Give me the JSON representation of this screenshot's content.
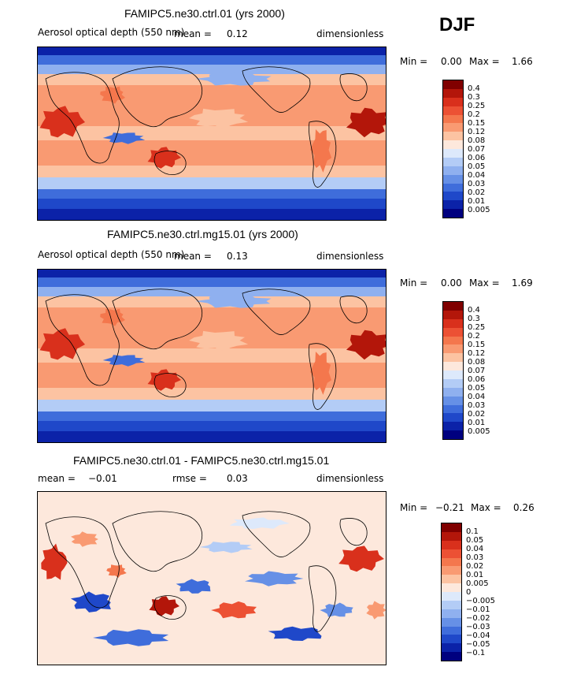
{
  "season": "DJF",
  "panels": [
    {
      "title": "FAMIPC5.ne30.ctrl.01 (yrs 2000)",
      "variable": "Aerosol optical depth (550 nm)",
      "mean_label": "mean =",
      "mean_value": "0.12",
      "units": "dimensionless",
      "min_label": "Min =",
      "min_value": "0.00",
      "max_label": "Max =",
      "max_value": "1.66",
      "colorbar": {
        "labels": [
          "0.4",
          "0.3",
          "0.25",
          "0.2",
          "0.15",
          "0.12",
          "0.08",
          "0.07",
          "0.06",
          "0.05",
          "0.04",
          "0.03",
          "0.02",
          "0.01",
          "0.005"
        ],
        "colors": [
          "#800000",
          "#b3160a",
          "#d9301c",
          "#ec5134",
          "#f4774d",
          "#f99a72",
          "#fcc3a2",
          "#fde8dc",
          "#dde9fb",
          "#b3ccf6",
          "#8fb0ef",
          "#6690e6",
          "#3f6ddb",
          "#1f48c9",
          "#0b22a8",
          "#00007f"
        ]
      }
    },
    {
      "title": "FAMIPC5.ne30.ctrl.mg15.01 (yrs 2000)",
      "variable": "Aerosol optical depth (550 nm)",
      "mean_label": "mean =",
      "mean_value": "0.13",
      "units": "dimensionless",
      "min_label": "Min =",
      "min_value": "0.00",
      "max_label": "Max =",
      "max_value": "1.69",
      "colorbar": {
        "labels": [
          "0.4",
          "0.3",
          "0.25",
          "0.2",
          "0.15",
          "0.12",
          "0.08",
          "0.07",
          "0.06",
          "0.05",
          "0.04",
          "0.03",
          "0.02",
          "0.01",
          "0.005"
        ],
        "colors": [
          "#800000",
          "#b3160a",
          "#d9301c",
          "#ec5134",
          "#f4774d",
          "#f99a72",
          "#fcc3a2",
          "#fde8dc",
          "#dde9fb",
          "#b3ccf6",
          "#8fb0ef",
          "#6690e6",
          "#3f6ddb",
          "#1f48c9",
          "#0b22a8",
          "#00007f"
        ]
      }
    },
    {
      "title": "FAMIPC5.ne30.ctrl.01 - FAMIPC5.ne30.ctrl.mg15.01",
      "mean_label": "mean =",
      "mean_value": "−0.01",
      "rmse_label": "rmse =",
      "rmse_value": "0.03",
      "units": "dimensionless",
      "min_label": "Min =",
      "min_value": "−0.21",
      "max_label": "Max =",
      "max_value": "0.26",
      "colorbar": {
        "labels": [
          "0.1",
          "0.05",
          "0.04",
          "0.03",
          "0.02",
          "0.01",
          "0.005",
          "0",
          "−0.005",
          "−0.01",
          "−0.02",
          "−0.03",
          "−0.04",
          "−0.05",
          "−0.1"
        ],
        "colors": [
          "#800000",
          "#b3160a",
          "#d9301c",
          "#ec5134",
          "#f4774d",
          "#f99a72",
          "#fcc3a2",
          "#fde8dc",
          "#dde9fb",
          "#b3ccf6",
          "#8fb0ef",
          "#6690e6",
          "#3f6ddb",
          "#1f48c9",
          "#0b22a8",
          "#00007f"
        ]
      }
    }
  ]
}
